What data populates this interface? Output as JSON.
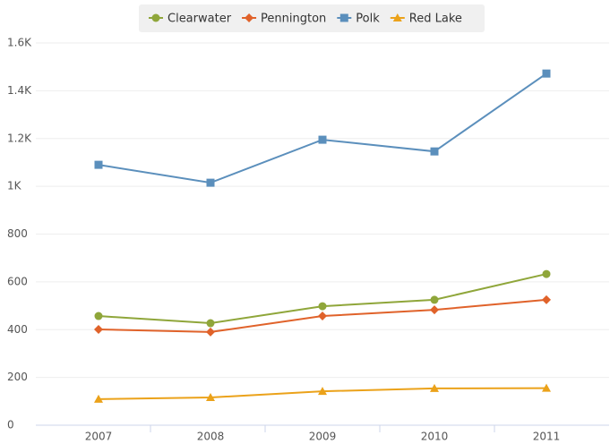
{
  "chart_data": {
    "type": "line",
    "categories": [
      "2007",
      "2008",
      "2009",
      "2010",
      "2011"
    ],
    "series": [
      {
        "name": "Clearwater",
        "color": "#8fa63a",
        "marker": "circle",
        "values": [
          457,
          427,
          498,
          525,
          633
        ]
      },
      {
        "name": "Pennington",
        "color": "#e0622a",
        "marker": "diamond",
        "values": [
          401,
          390,
          457,
          483,
          525
        ]
      },
      {
        "name": "Polk",
        "color": "#5b8fbc",
        "marker": "square",
        "values": [
          1090,
          1015,
          1195,
          1146,
          1472
        ]
      },
      {
        "name": "Red Lake",
        "color": "#eba21a",
        "marker": "triangle",
        "values": [
          109,
          116,
          142,
          154,
          155
        ]
      }
    ],
    "ylim": [
      0,
      1600
    ],
    "yticks": [
      0,
      200,
      400,
      600,
      800,
      {
        "value": 1000,
        "label": "1K"
      },
      {
        "value": 1200,
        "label": "1.2K"
      },
      {
        "value": 1400,
        "label": "1.4K"
      },
      {
        "value": 1600,
        "label": "1.6K"
      }
    ],
    "grid": true,
    "legend": "top"
  }
}
